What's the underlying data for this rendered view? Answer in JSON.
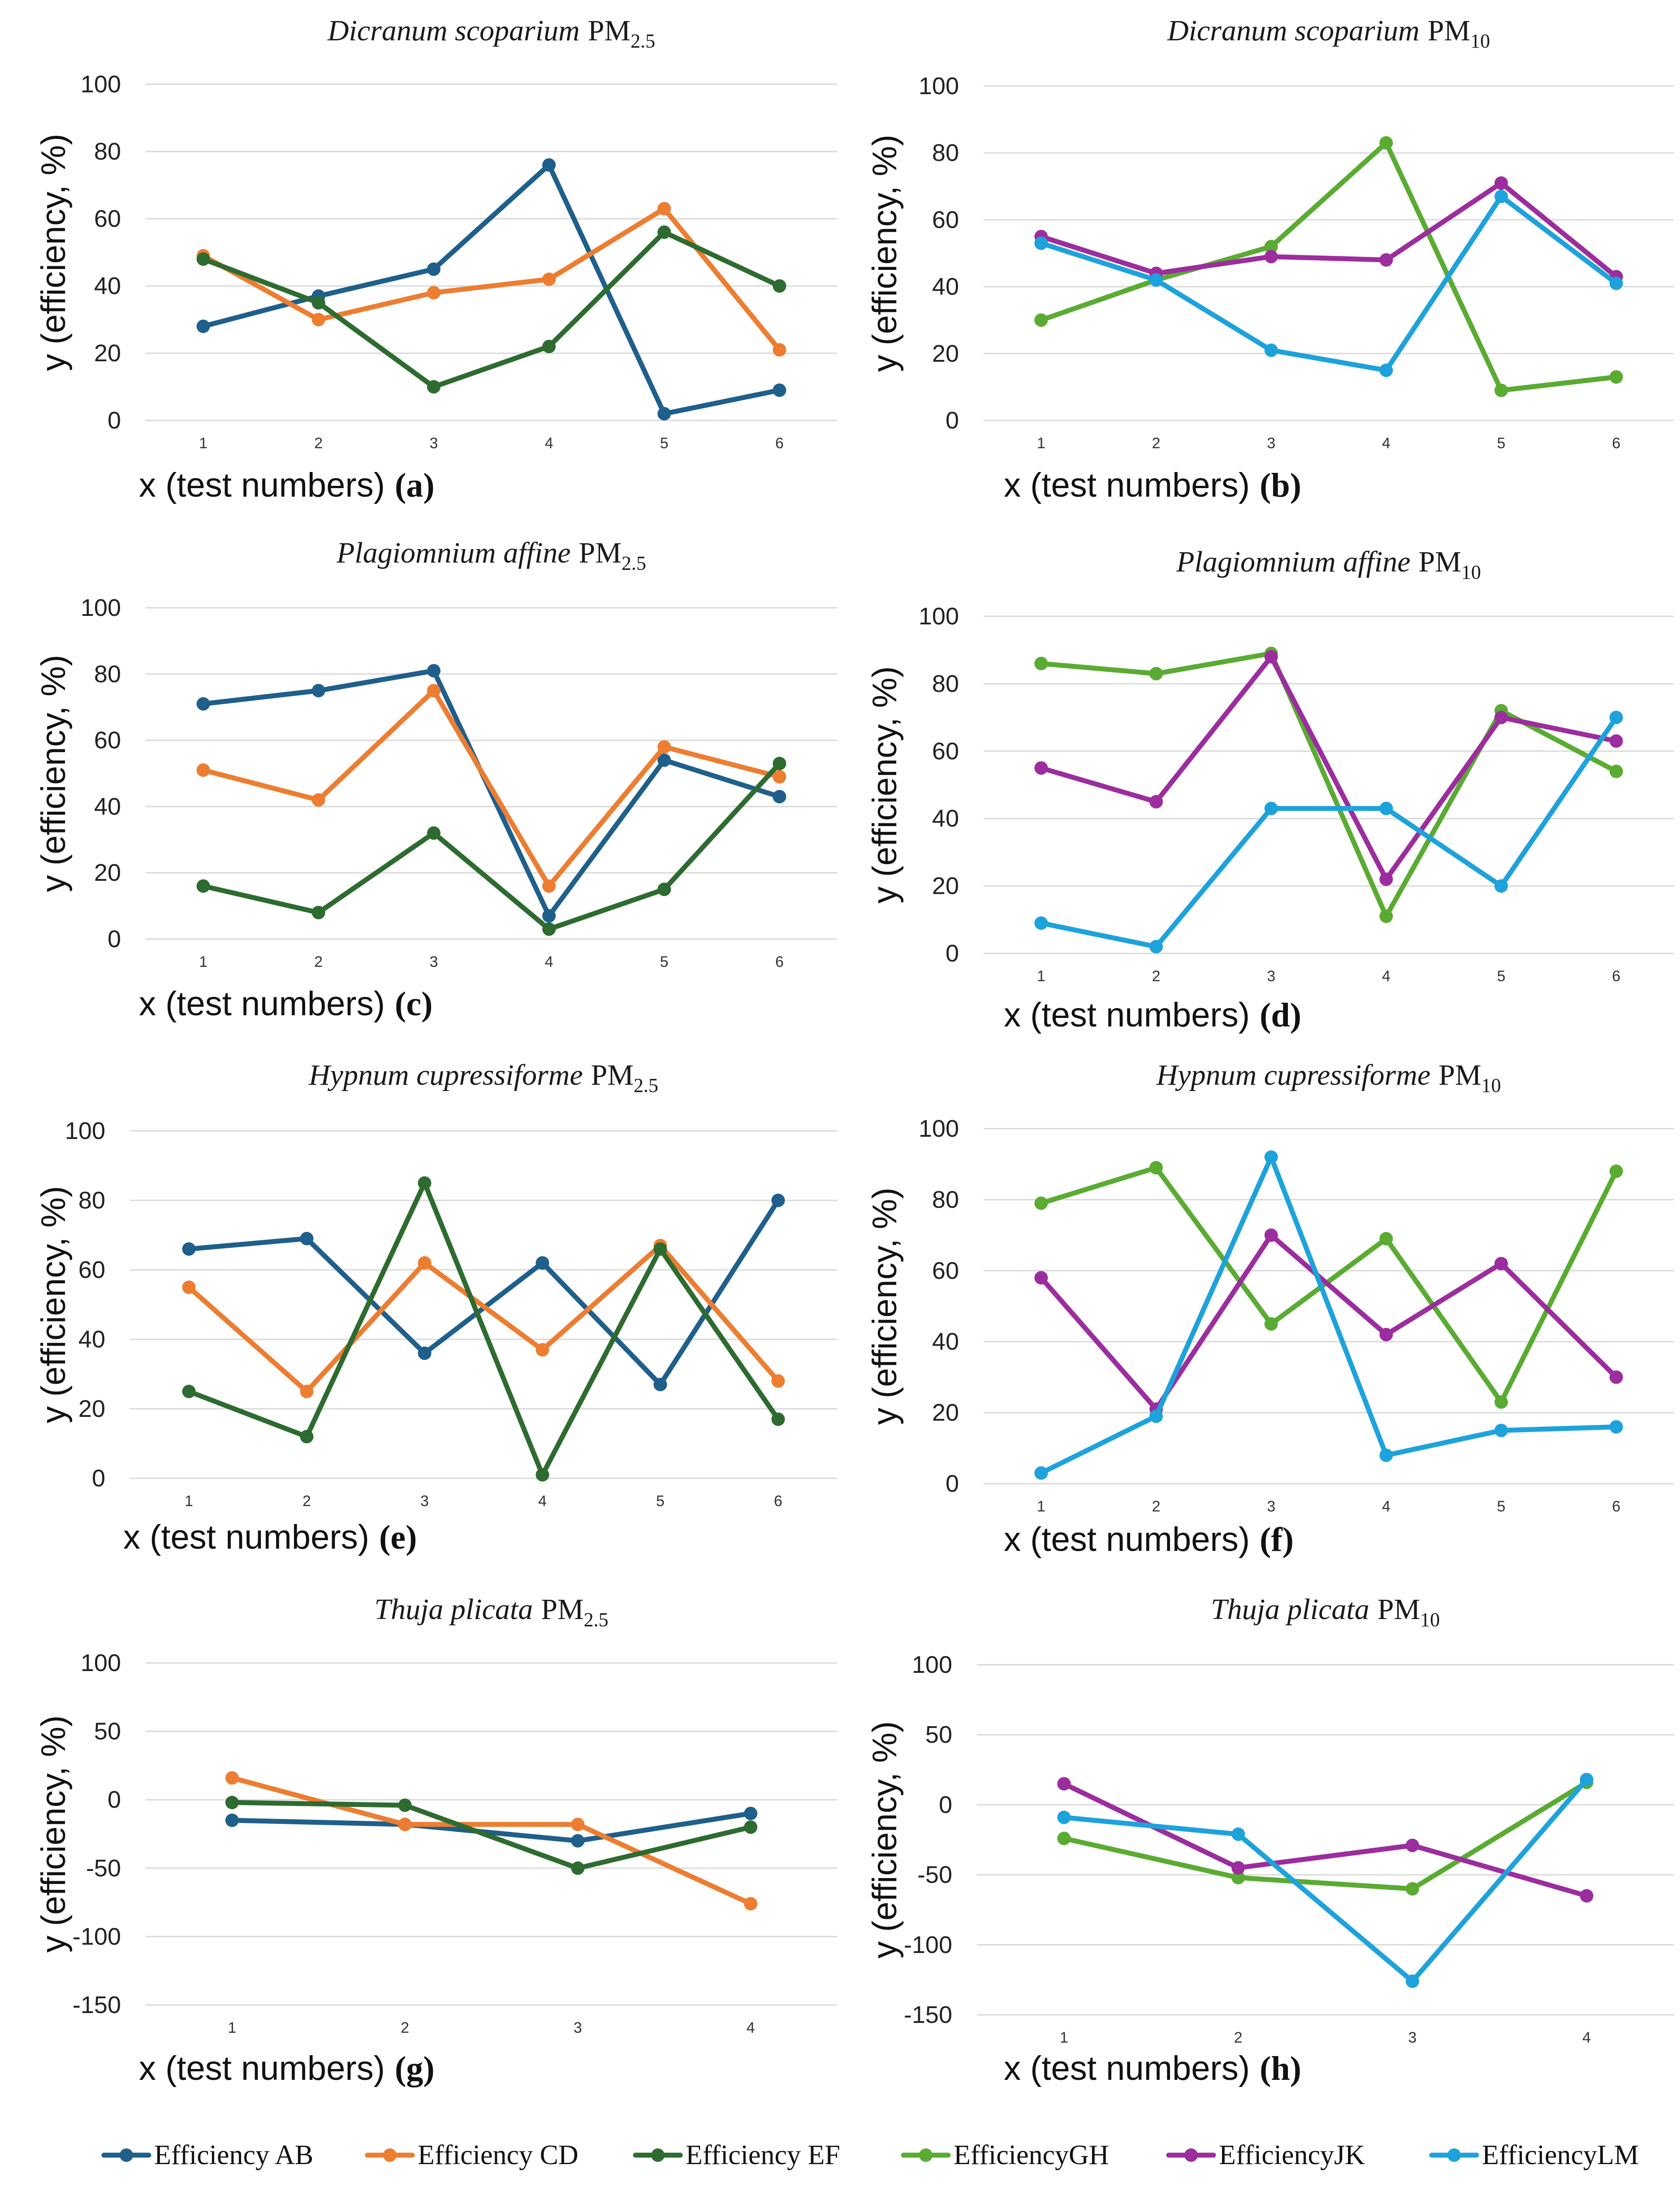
{
  "colors": {
    "Efficiency AB": "#1f5f8b",
    "Efficiency CD": "#ed7d31",
    "Efficiency EF": "#2e6b30",
    "EfficiencyGH": "#5aab32",
    "EfficiencyJK": "#9c2d9e",
    "EfficiencyLM": "#1ea2dc"
  },
  "legend": [
    "Efficiency AB",
    "Efficiency CD",
    "Efficiency EF",
    "EfficiencyGH",
    "EfficiencyJK",
    "EfficiencyLM"
  ],
  "chart_data": [
    {
      "id": "a",
      "type": "line",
      "title": {
        "species": "Dicranum scoparium",
        "pm": "PM",
        "sub": "2.5"
      },
      "xlabel": "x (test numbers)",
      "tag": "(a)",
      "ylabel": "y (efficiency, %)",
      "x": [
        1,
        2,
        3,
        4,
        5,
        6
      ],
      "ylim": [
        0,
        100
      ],
      "yticks": [
        0,
        20,
        40,
        60,
        80,
        100
      ],
      "series": [
        {
          "name": "Efficiency AB",
          "values": [
            28,
            37,
            45,
            76,
            2,
            9
          ]
        },
        {
          "name": "Efficiency CD",
          "values": [
            49,
            30,
            38,
            42,
            63,
            21
          ]
        },
        {
          "name": "Efficiency EF",
          "values": [
            48,
            35,
            10,
            22,
            56,
            40
          ]
        }
      ]
    },
    {
      "id": "b",
      "type": "line",
      "title": {
        "species": "Dicranum scoparium",
        "pm": "PM",
        "sub": "10"
      },
      "xlabel": "x (test numbers)",
      "tag": "(b)",
      "ylabel": "y (efficiency, %)",
      "x": [
        1,
        2,
        3,
        4,
        5,
        6
      ],
      "ylim": [
        0,
        100
      ],
      "yticks": [
        0,
        20,
        40,
        60,
        80,
        100
      ],
      "series": [
        {
          "name": "EfficiencyGH",
          "values": [
            30,
            42,
            52,
            83,
            9,
            13
          ]
        },
        {
          "name": "EfficiencyJK",
          "values": [
            55,
            44,
            49,
            48,
            71,
            43
          ]
        },
        {
          "name": "EfficiencyLM",
          "values": [
            53,
            42,
            21,
            15,
            67,
            41
          ]
        }
      ]
    },
    {
      "id": "c",
      "type": "line",
      "title": {
        "species": "Plagiomnium affine",
        "pm": "PM",
        "sub": "2.5"
      },
      "xlabel": "x (test numbers)",
      "tag": "(c)",
      "ylabel": "y (efficiency, %)",
      "x": [
        1,
        2,
        3,
        4,
        5,
        6
      ],
      "ylim": [
        0,
        100
      ],
      "yticks": [
        0,
        20,
        40,
        60,
        80,
        100
      ],
      "series": [
        {
          "name": "Efficiency AB",
          "values": [
            71,
            75,
            81,
            7,
            54,
            43
          ]
        },
        {
          "name": "Efficiency CD",
          "values": [
            51,
            42,
            75,
            16,
            58,
            49
          ]
        },
        {
          "name": "Efficiency EF",
          "values": [
            16,
            8,
            32,
            3,
            15,
            53
          ]
        }
      ]
    },
    {
      "id": "d",
      "type": "line",
      "title": {
        "species": "Plagiomnium affine",
        "pm": "PM",
        "sub": "10"
      },
      "xlabel": "x (test numbers)",
      "tag": "(d)",
      "ylabel": "y (efficiency, %)",
      "x": [
        1,
        2,
        3,
        4,
        5,
        6
      ],
      "ylim": [
        0,
        100
      ],
      "yticks": [
        0,
        20,
        40,
        60,
        80,
        100
      ],
      "series": [
        {
          "name": "EfficiencyGH",
          "values": [
            86,
            83,
            89,
            11,
            72,
            54
          ]
        },
        {
          "name": "EfficiencyJK",
          "values": [
            55,
            45,
            88,
            22,
            70,
            63
          ]
        },
        {
          "name": "EfficiencyLM",
          "values": [
            9,
            2,
            43,
            43,
            20,
            70
          ]
        }
      ]
    },
    {
      "id": "e",
      "type": "line",
      "title": {
        "species": "Hypnum cupressiforme",
        "pm": "PM",
        "sub": "2.5"
      },
      "xlabel": "x (test numbers)",
      "tag": "(e)",
      "ylabel": "y (efficiency, %)",
      "x": [
        1,
        2,
        3,
        4,
        5,
        6
      ],
      "ylim": [
        0,
        100
      ],
      "yticks": [
        0,
        20,
        40,
        60,
        80,
        100
      ],
      "series": [
        {
          "name": "Efficiency AB",
          "values": [
            66,
            69,
            36,
            62,
            27,
            80
          ]
        },
        {
          "name": "Efficiency CD",
          "values": [
            55,
            25,
            62,
            37,
            67,
            28
          ]
        },
        {
          "name": "Efficiency EF",
          "values": [
            25,
            12,
            85,
            1,
            66,
            17
          ]
        }
      ]
    },
    {
      "id": "f",
      "type": "line",
      "title": {
        "species": "Hypnum cupressiforme",
        "pm": "PM",
        "sub": "10"
      },
      "xlabel": "x (test numbers)",
      "tag": "(f)",
      "ylabel": "y (efficiency, %)",
      "x": [
        1,
        2,
        3,
        4,
        5,
        6
      ],
      "ylim": [
        0,
        100
      ],
      "yticks": [
        0,
        20,
        40,
        60,
        80,
        100
      ],
      "series": [
        {
          "name": "EfficiencyGH",
          "values": [
            79,
            89,
            45,
            69,
            23,
            88
          ]
        },
        {
          "name": "EfficiencyJK",
          "values": [
            58,
            21,
            70,
            42,
            62,
            30
          ]
        },
        {
          "name": "EfficiencyLM",
          "values": [
            3,
            19,
            92,
            8,
            15,
            16
          ]
        }
      ]
    },
    {
      "id": "g",
      "type": "line",
      "title": {
        "species": "Thuja plicata",
        "pm": "PM",
        "sub": "2.5"
      },
      "xlabel": "x (test numbers)",
      "tag": "(g)",
      "ylabel": "y (efficiency, %)",
      "x": [
        1,
        2,
        3,
        4
      ],
      "ylim": [
        -150,
        100
      ],
      "yticks": [
        -150,
        -100,
        -50,
        0,
        50,
        100
      ],
      "series": [
        {
          "name": "Efficiency AB",
          "values": [
            -15,
            -18,
            -30,
            -10
          ]
        },
        {
          "name": "Efficiency CD",
          "values": [
            16,
            -18,
            -18,
            -76
          ]
        },
        {
          "name": "Efficiency EF",
          "values": [
            -2,
            -4,
            -50,
            -20
          ]
        }
      ]
    },
    {
      "id": "h",
      "type": "line",
      "title": {
        "species": "Thuja plicata",
        "pm": "PM",
        "sub": "10"
      },
      "xlabel": "x (test numbers)",
      "tag": "(h)",
      "ylabel": "y (efficiency, %)",
      "x": [
        1,
        2,
        3,
        4
      ],
      "ylim": [
        -150,
        100
      ],
      "yticks": [
        -150,
        -100,
        -50,
        0,
        50,
        100
      ],
      "series": [
        {
          "name": "EfficiencyGH",
          "values": [
            -24,
            -52,
            -60,
            16
          ]
        },
        {
          "name": "EfficiencyJK",
          "values": [
            15,
            -45,
            -29,
            -65
          ]
        },
        {
          "name": "EfficiencyLM",
          "values": [
            -9,
            -21,
            -126,
            18
          ]
        }
      ]
    }
  ]
}
